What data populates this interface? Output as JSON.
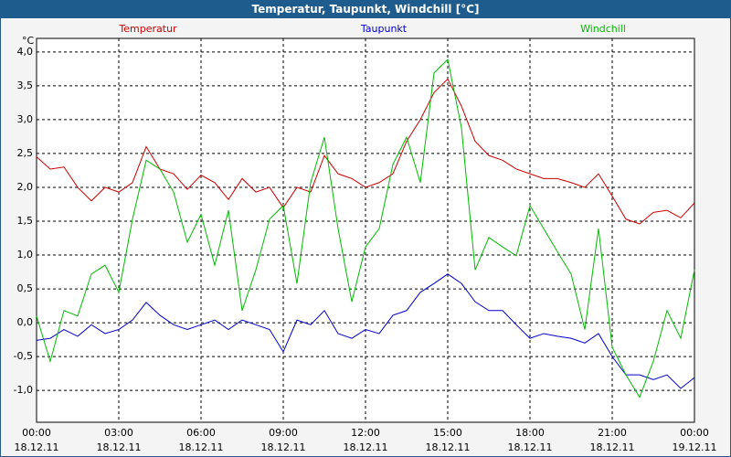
{
  "chart_data": {
    "type": "line",
    "title": "Temperatur, Taupunkt, Windchill [°C]",
    "y_unit": "°C",
    "x": [
      0,
      0.5,
      1,
      1.5,
      2,
      2.5,
      3,
      3.5,
      4,
      4.5,
      5,
      5.5,
      6,
      6.5,
      7,
      7.5,
      8,
      8.5,
      9,
      9.5,
      10,
      10.5,
      11,
      11.5,
      12,
      12.5,
      13,
      13.5,
      14,
      14.5,
      15,
      15.5,
      16,
      16.5,
      17,
      17.5,
      18,
      18.5,
      19,
      19.5,
      20,
      20.5,
      21,
      21.5,
      22,
      22.5,
      23,
      23.5,
      24
    ],
    "series": [
      {
        "name": "Temperatur",
        "color": "#cc0000",
        "values": [
          2.45,
          2.27,
          2.3,
          2.0,
          1.8,
          2.0,
          1.93,
          2.07,
          2.6,
          2.27,
          2.2,
          1.97,
          2.18,
          2.07,
          1.82,
          2.13,
          1.93,
          2.0,
          1.7,
          2.0,
          1.93,
          2.47,
          2.2,
          2.13,
          2.0,
          2.07,
          2.2,
          2.68,
          3.0,
          3.4,
          3.6,
          3.2,
          2.68,
          2.47,
          2.4,
          2.27,
          2.2,
          2.13,
          2.13,
          2.07,
          2.0,
          2.2,
          1.87,
          1.53,
          1.46,
          1.63,
          1.66,
          1.55,
          1.77
        ]
      },
      {
        "name": "Taupunkt",
        "color": "#0000cc",
        "values": [
          -0.26,
          -0.23,
          -0.1,
          -0.2,
          -0.03,
          -0.16,
          -0.1,
          0.04,
          0.3,
          0.11,
          -0.03,
          -0.1,
          -0.03,
          0.04,
          -0.1,
          0.04,
          -0.03,
          -0.1,
          -0.43,
          0.04,
          -0.03,
          0.18,
          -0.16,
          -0.23,
          -0.1,
          -0.16,
          0.11,
          0.18,
          0.45,
          0.58,
          0.72,
          0.58,
          0.31,
          0.18,
          0.18,
          -0.03,
          -0.23,
          -0.16,
          -0.2,
          -0.23,
          -0.3,
          -0.16,
          -0.5,
          -0.77,
          -0.77,
          -0.84,
          -0.77,
          -0.97,
          -0.81
        ]
      },
      {
        "name": "Windchill",
        "color": "#00bb00",
        "values": [
          0.1,
          -0.57,
          0.18,
          0.1,
          0.72,
          0.85,
          0.45,
          1.53,
          2.4,
          2.27,
          1.93,
          1.19,
          1.6,
          0.85,
          1.66,
          0.18,
          0.78,
          1.53,
          1.73,
          0.58,
          2.07,
          2.74,
          1.39,
          0.31,
          1.12,
          1.39,
          2.34,
          2.74,
          2.07,
          3.69,
          3.89,
          2.88,
          0.78,
          1.26,
          1.12,
          0.99,
          1.73,
          1.39,
          1.05,
          0.72,
          -0.1,
          1.39,
          -0.36,
          -0.77,
          -1.1,
          -0.57,
          0.18,
          -0.23,
          0.78
        ]
      }
    ],
    "xlim": [
      0,
      24
    ],
    "xticks": [
      {
        "value": 0,
        "label": "00:00"
      },
      {
        "value": 3,
        "label": "03:00"
      },
      {
        "value": 6,
        "label": "06:00"
      },
      {
        "value": 9,
        "label": "09:00"
      },
      {
        "value": 12,
        "label": "12:00"
      },
      {
        "value": 15,
        "label": "15:00"
      },
      {
        "value": 18,
        "label": "18:00"
      },
      {
        "value": 21,
        "label": "21:00"
      },
      {
        "value": 24,
        "label": "00:00"
      }
    ],
    "xtick_dates": [
      "18.12.11",
      "18.12.11",
      "18.12.11",
      "18.12.11",
      "18.12.11",
      "18.12.11",
      "18.12.11",
      "18.12.11",
      "19.12.11"
    ],
    "ylim": [
      -1.47,
      4.2
    ],
    "yticks": [
      {
        "value": 4,
        "label": "4,0"
      },
      {
        "value": 3.5,
        "label": "3,5"
      },
      {
        "value": 3,
        "label": "3,0"
      },
      {
        "value": 2.5,
        "label": "2,5"
      },
      {
        "value": 2,
        "label": "2,0"
      },
      {
        "value": 1.5,
        "label": "1,5"
      },
      {
        "value": 1,
        "label": "1,0"
      },
      {
        "value": 0.5,
        "label": "0,5"
      },
      {
        "value": 0,
        "label": "0,0"
      },
      {
        "value": -0.5,
        "label": "-0,5"
      },
      {
        "value": -1,
        "label": "-1,0"
      }
    ],
    "grid": true
  }
}
